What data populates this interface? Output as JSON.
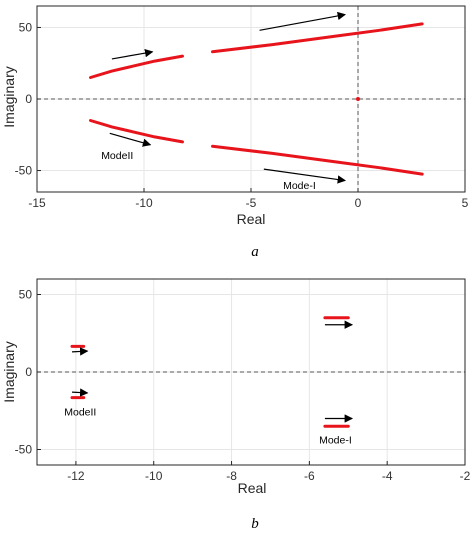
{
  "chart_data": [
    {
      "type": "line",
      "caption": "a",
      "xlabel": "Real",
      "ylabel": "Imaginary",
      "xlim": [
        -15,
        5
      ],
      "ylim": [
        -65,
        65
      ],
      "xticks": [
        -15,
        -10,
        -5,
        0,
        5
      ],
      "yticks": [
        -50,
        0,
        50
      ],
      "grid": true,
      "colors": {
        "series": "#e8141c",
        "arrow": "#000000",
        "grid": "#e6e6e6",
        "axis": "#262626",
        "ref": "#555555"
      },
      "reference_lines": {
        "horizontal_y": 0,
        "vertical_x": 0
      },
      "series": [
        {
          "x": [
            -12.5,
            -11.5,
            -10.5,
            -9.5,
            -8.2
          ],
          "y": [
            15,
            19.5,
            23,
            26.5,
            30
          ]
        },
        {
          "x": [
            -12.5,
            -11.5,
            -10.5,
            -9.5,
            -8.2
          ],
          "y": [
            -15,
            -19.5,
            -23,
            -26.5,
            -30
          ]
        },
        {
          "x": [
            -6.8,
            -4,
            -1,
            1,
            3
          ],
          "y": [
            33,
            38,
            44,
            48,
            52.5
          ]
        },
        {
          "x": [
            -6.8,
            -4,
            -1,
            1,
            3
          ],
          "y": [
            -33,
            -38,
            -44,
            -48,
            -52.5
          ]
        }
      ],
      "points": [
        {
          "x": 0,
          "y": 0
        }
      ],
      "arrows": [
        {
          "from": [
            -11.5,
            28
          ],
          "to": [
            -9.6,
            33
          ]
        },
        {
          "from": [
            -11.6,
            -24
          ],
          "to": [
            -9.7,
            -32
          ]
        },
        {
          "from": [
            -4.6,
            48
          ],
          "to": [
            -0.6,
            59
          ]
        },
        {
          "from": [
            -4.4,
            -49
          ],
          "to": [
            -0.6,
            -57
          ]
        }
      ],
      "annotations": [
        {
          "text": "ModeII",
          "x": -12.0,
          "y": -42
        },
        {
          "text": "Mode-I",
          "x": -3.5,
          "y": -63
        }
      ]
    },
    {
      "type": "line",
      "caption": "b",
      "xlabel": "Real",
      "ylabel": "Imaginary",
      "xlim": [
        -13,
        -2
      ],
      "ylim": [
        -60,
        60
      ],
      "xticks": [
        -12,
        -10,
        -8,
        -6,
        -4,
        -2
      ],
      "yticks": [
        -50,
        0,
        50
      ],
      "grid": true,
      "colors": {
        "series": "#e8141c",
        "arrow": "#000000",
        "grid": "#e6e6e6",
        "axis": "#262626",
        "ref": "#555555"
      },
      "reference_lines": {
        "horizontal_y": 0
      },
      "series": [
        {
          "x": [
            -12.1,
            -11.8
          ],
          "y": [
            16.5,
            16.5
          ]
        },
        {
          "x": [
            -12.1,
            -11.8
          ],
          "y": [
            -16.5,
            -16.5
          ]
        },
        {
          "x": [
            -5.6,
            -5.0
          ],
          "y": [
            35,
            35
          ]
        },
        {
          "x": [
            -5.6,
            -5.0
          ],
          "y": [
            -35,
            -35
          ]
        }
      ],
      "points": [],
      "arrows": [
        {
          "from": [
            -12.1,
            13
          ],
          "to": [
            -11.7,
            13.5
          ]
        },
        {
          "from": [
            -12.1,
            -13
          ],
          "to": [
            -11.7,
            -13.5
          ]
        },
        {
          "from": [
            -5.6,
            30.5
          ],
          "to": [
            -4.9,
            30.5
          ]
        },
        {
          "from": [
            -5.6,
            -30
          ],
          "to": [
            -4.9,
            -30
          ]
        }
      ],
      "annotations": [
        {
          "text": "ModeII",
          "x": -12.3,
          "y": -28
        },
        {
          "text": "Mode-I",
          "x": -5.75,
          "y": -46
        }
      ]
    }
  ]
}
